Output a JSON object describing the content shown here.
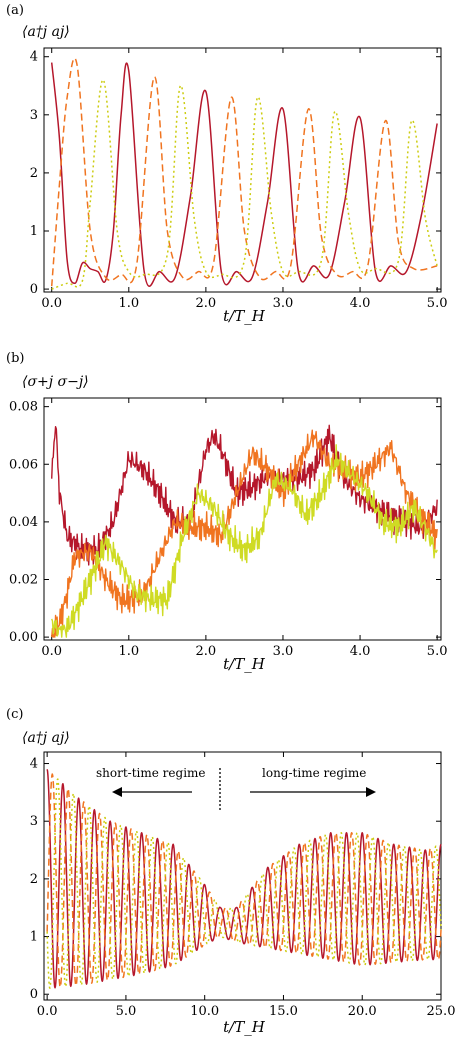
{
  "chart_data": [
    {
      "panel": "(a)",
      "type": "line",
      "ylabel": "⟨a†j aj⟩",
      "xlabel": "t/T_H",
      "xlim": [
        -0.1,
        5.05
      ],
      "ylim": [
        -0.05,
        4.15
      ],
      "xticks": [
        0.0,
        1.0,
        2.0,
        3.0,
        4.0,
        5.0
      ],
      "xtick_labels": [
        "0.0",
        "1.0",
        "2.0",
        "3.0",
        "4.0",
        "5.0"
      ],
      "yticks": [
        0,
        1,
        2,
        3,
        4
      ],
      "ytick_labels": [
        "0",
        "1",
        "2",
        "3",
        "4"
      ],
      "series": [
        {
          "style": "solid",
          "color": "#b5172b",
          "x": [
            0.0,
            0.1,
            0.2,
            0.3,
            0.4,
            0.5,
            0.6,
            0.7,
            0.8,
            0.9,
            1.0,
            1.2,
            1.4,
            1.6,
            1.8,
            2.0,
            2.2,
            2.4,
            2.6,
            2.8,
            3.0,
            3.2,
            3.4,
            3.6,
            3.8,
            4.0,
            4.2,
            4.4,
            4.6,
            4.8,
            5.0
          ],
          "values": [
            3.9,
            2.6,
            0.5,
            0.1,
            0.45,
            0.35,
            0.3,
            0.15,
            1.0,
            3.0,
            3.75,
            0.3,
            0.3,
            0.2,
            1.6,
            3.4,
            0.3,
            0.3,
            0.2,
            1.5,
            3.1,
            0.3,
            0.4,
            0.25,
            1.5,
            2.95,
            0.3,
            0.4,
            0.3,
            1.3,
            2.85
          ]
        },
        {
          "style": "dashed",
          "color": "#f07420",
          "x": [
            0.0,
            0.1,
            0.2,
            0.33,
            0.5,
            0.7,
            0.9,
            1.1,
            1.33,
            1.5,
            1.7,
            1.9,
            2.1,
            2.33,
            2.5,
            2.7,
            2.9,
            3.1,
            3.33,
            3.5,
            3.7,
            3.9,
            4.1,
            4.33,
            4.5,
            4.7,
            5.0
          ],
          "values": [
            0.05,
            1.8,
            3.3,
            3.85,
            1.0,
            0.2,
            0.25,
            0.4,
            3.65,
            1.0,
            0.2,
            0.3,
            0.45,
            3.3,
            1.0,
            0.2,
            0.3,
            0.4,
            3.1,
            0.9,
            0.25,
            0.3,
            0.4,
            2.9,
            0.8,
            0.35,
            0.4
          ]
        },
        {
          "style": "dotted",
          "color": "#cccc10",
          "x": [
            0.0,
            0.2,
            0.4,
            0.5,
            0.67,
            0.85,
            1.0,
            1.2,
            1.5,
            1.67,
            1.85,
            2.0,
            2.2,
            2.5,
            2.67,
            2.85,
            3.0,
            3.2,
            3.5,
            3.67,
            3.85,
            4.0,
            4.2,
            4.5,
            4.67,
            4.85,
            5.0
          ],
          "values": [
            0.0,
            0.1,
            0.15,
            1.5,
            3.6,
            1.0,
            0.3,
            0.25,
            0.6,
            3.5,
            1.2,
            0.3,
            0.25,
            0.5,
            3.3,
            1.3,
            0.3,
            0.3,
            0.5,
            3.05,
            1.3,
            0.35,
            0.35,
            0.5,
            2.9,
            1.2,
            0.4
          ]
        }
      ]
    },
    {
      "panel": "(b)",
      "type": "line",
      "ylabel": "⟨σ+j σ−j⟩",
      "xlabel": "t/T_H",
      "xlim": [
        -0.1,
        5.05
      ],
      "ylim": [
        -0.001,
        0.083
      ],
      "xticks": [
        0.0,
        1.0,
        2.0,
        3.0,
        4.0,
        5.0
      ],
      "xtick_labels": [
        "0.0",
        "1.0",
        "2.0",
        "3.0",
        "4.0",
        "5.0"
      ],
      "yticks": [
        0.0,
        0.02,
        0.04,
        0.06,
        0.08
      ],
      "ytick_labels": [
        "0.00",
        "0.02",
        "0.04",
        "0.06",
        "0.08"
      ],
      "series": [
        {
          "color": "#b5172b",
          "x": [
            0.0,
            0.05,
            0.1,
            0.2,
            0.4,
            0.6,
            0.8,
            1.0,
            1.2,
            1.4,
            1.6,
            1.8,
            2.0,
            2.1,
            2.2,
            2.4,
            2.6,
            2.8,
            3.0,
            3.2,
            3.4,
            3.6,
            3.8,
            4.0,
            4.2,
            4.4,
            4.6,
            4.8,
            5.0
          ],
          "values": [
            0.055,
            0.075,
            0.05,
            0.035,
            0.03,
            0.03,
            0.04,
            0.062,
            0.058,
            0.05,
            0.04,
            0.04,
            0.065,
            0.07,
            0.065,
            0.05,
            0.052,
            0.056,
            0.055,
            0.055,
            0.058,
            0.07,
            0.055,
            0.048,
            0.045,
            0.042,
            0.04,
            0.038,
            0.045
          ]
        },
        {
          "color": "#f07420",
          "x": [
            0.0,
            0.1,
            0.2,
            0.3,
            0.5,
            0.7,
            0.9,
            1.0,
            1.2,
            1.4,
            1.6,
            1.8,
            2.0,
            2.2,
            2.4,
            2.6,
            2.8,
            3.0,
            3.2,
            3.4,
            3.6,
            3.8,
            4.0,
            4.2,
            4.4,
            4.6,
            4.8,
            5.0
          ],
          "values": [
            0.0,
            0.005,
            0.015,
            0.028,
            0.03,
            0.02,
            0.013,
            0.013,
            0.015,
            0.028,
            0.04,
            0.038,
            0.038,
            0.035,
            0.05,
            0.064,
            0.058,
            0.05,
            0.06,
            0.07,
            0.06,
            0.058,
            0.055,
            0.06,
            0.066,
            0.05,
            0.042,
            0.035
          ]
        },
        {
          "color": "#cfdb24",
          "x": [
            0.0,
            0.1,
            0.2,
            0.3,
            0.5,
            0.7,
            0.9,
            1.1,
            1.3,
            1.5,
            1.7,
            1.9,
            2.1,
            2.3,
            2.5,
            2.7,
            2.9,
            3.1,
            3.3,
            3.5,
            3.7,
            3.9,
            4.1,
            4.3,
            4.5,
            4.7,
            4.9,
            5.0
          ],
          "values": [
            0.005,
            0.002,
            0.003,
            0.008,
            0.02,
            0.033,
            0.025,
            0.015,
            0.013,
            0.013,
            0.035,
            0.05,
            0.045,
            0.035,
            0.03,
            0.035,
            0.055,
            0.052,
            0.042,
            0.05,
            0.062,
            0.056,
            0.05,
            0.04,
            0.038,
            0.045,
            0.035,
            0.028
          ]
        }
      ]
    },
    {
      "panel": "(c)",
      "type": "line",
      "ylabel": "⟨a†j aj⟩",
      "xlabel": "t/T_H",
      "xlim": [
        -0.2,
        25.0
      ],
      "ylim": [
        -0.1,
        4.2
      ],
      "xticks": [
        0.0,
        5.0,
        10.0,
        15.0,
        20.0,
        25.0
      ],
      "xtick_labels": [
        "0.0",
        "5.0",
        "10.0",
        "15.0",
        "20.0",
        "25.0"
      ],
      "yticks": [
        0,
        1,
        2,
        3,
        4
      ],
      "ytick_labels": [
        "0",
        "1",
        "2",
        "3",
        "4"
      ],
      "annotations": {
        "left": "short-time regime",
        "right": "long-time regime"
      },
      "envelope": {
        "x": [
          0.0,
          2.0,
          4.0,
          6.0,
          8.0,
          10.0,
          11.0,
          12.0,
          14.0,
          16.0,
          18.0,
          20.0,
          22.0,
          24.0,
          25.0
        ],
        "upper": [
          3.9,
          3.4,
          3.0,
          2.8,
          2.6,
          1.9,
          1.5,
          1.5,
          2.2,
          2.6,
          2.8,
          2.8,
          2.6,
          2.5,
          2.6
        ],
        "lower": [
          0.1,
          0.15,
          0.25,
          0.35,
          0.5,
          0.85,
          1.0,
          0.9,
          0.8,
          0.7,
          0.6,
          0.5,
          0.55,
          0.6,
          0.6
        ]
      },
      "series": [
        {
          "style": "solid",
          "color": "#b5172b",
          "period": 1.0,
          "phase": 0.0
        },
        {
          "style": "dashed",
          "color": "#f07420",
          "period": 1.0,
          "phase": 0.33
        },
        {
          "style": "dotted",
          "color": "#cccc10",
          "period": 1.0,
          "phase": 0.67
        }
      ]
    }
  ]
}
